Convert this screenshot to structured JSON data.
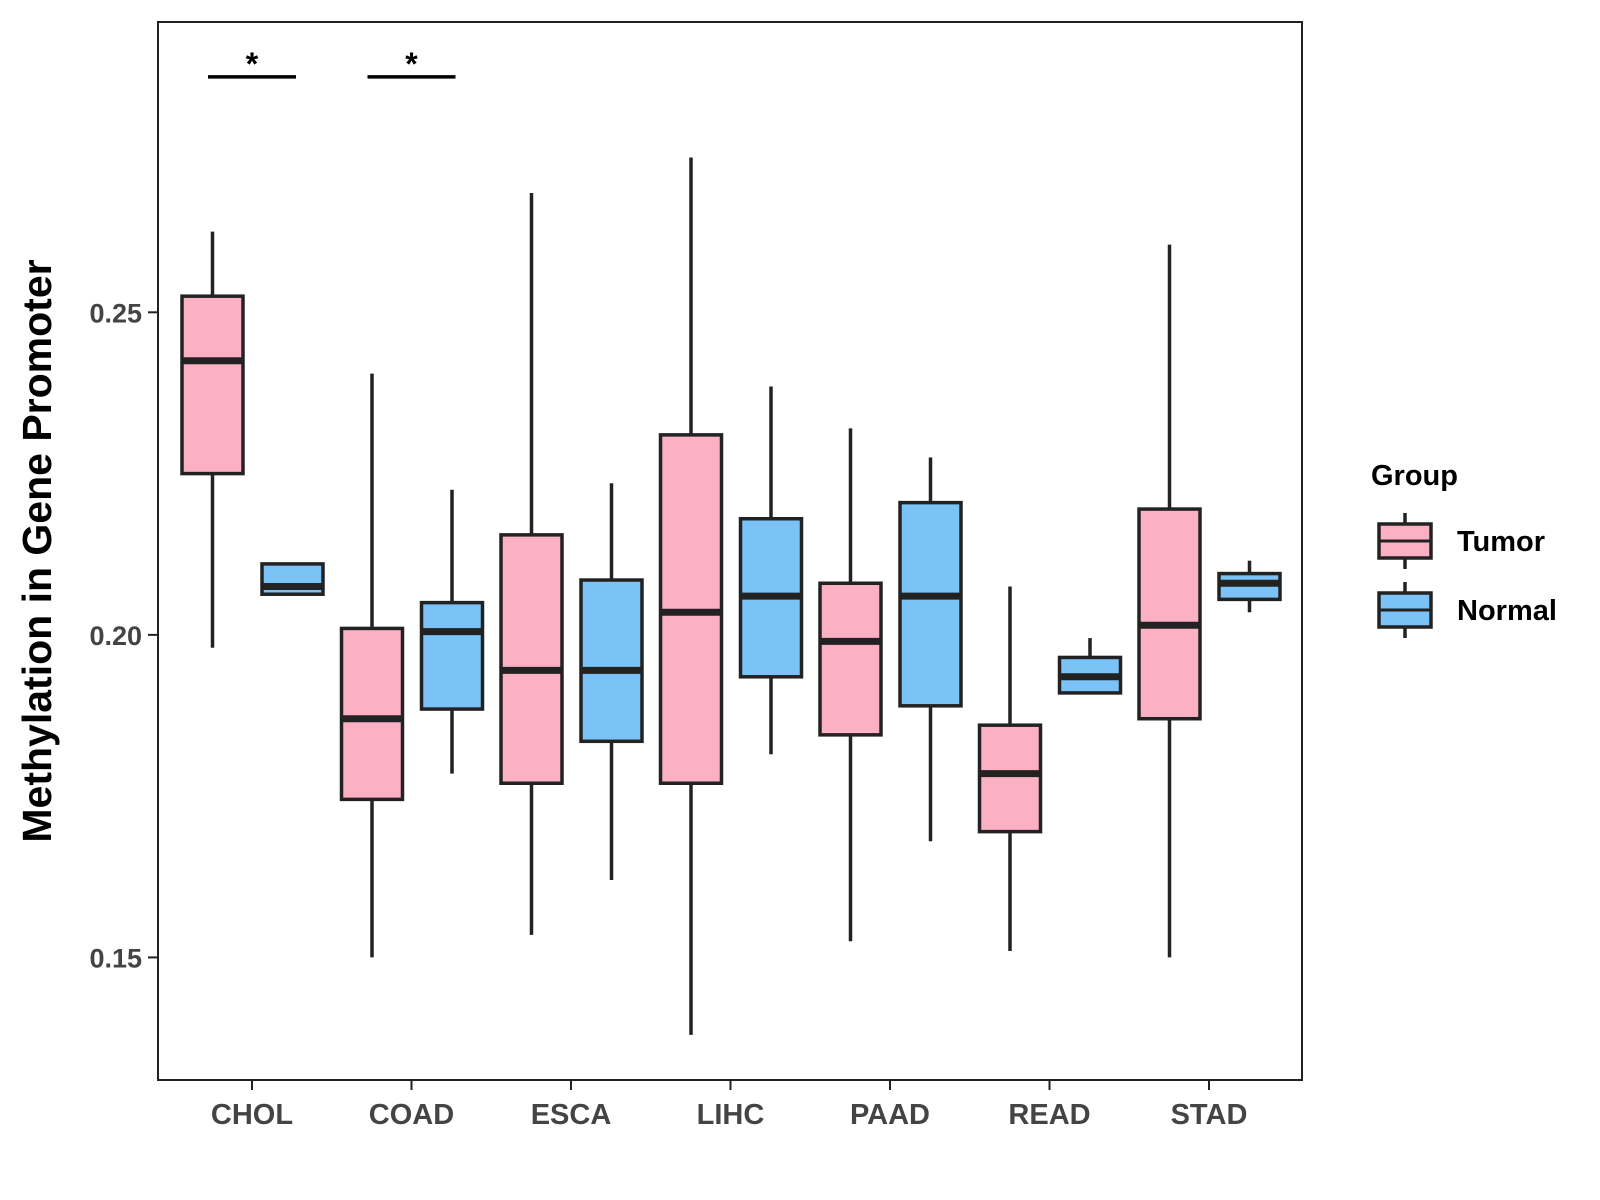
{
  "chart_data": {
    "type": "boxplot",
    "title": "",
    "xlabel": "",
    "ylabel": "Methylation in Gene Promoter",
    "ylim": [
      0.131,
      0.295
    ],
    "yticks": [
      0.15,
      0.2,
      0.25
    ],
    "ytick_labels": [
      "0.15",
      "0.20",
      "0.25"
    ],
    "categories": [
      "CHOL",
      "COAD",
      "ESCA",
      "LIHC",
      "PAAD",
      "READ",
      "STAD"
    ],
    "grid": false,
    "series": [
      {
        "name": "Tumor",
        "color": "#fbb0c3",
        "boxes": [
          {
            "min": 0.198,
            "q1": 0.225,
            "median": 0.2425,
            "q3": 0.2525,
            "max": 0.2625
          },
          {
            "min": 0.15,
            "q1": 0.1745,
            "median": 0.187,
            "q3": 0.201,
            "max": 0.2405
          },
          {
            "min": 0.1535,
            "q1": 0.177,
            "median": 0.1945,
            "q3": 0.2155,
            "max": 0.2685
          },
          {
            "min": 0.138,
            "q1": 0.177,
            "median": 0.2035,
            "q3": 0.231,
            "max": 0.274
          },
          {
            "min": 0.1525,
            "q1": 0.1845,
            "median": 0.199,
            "q3": 0.208,
            "max": 0.232
          },
          {
            "min": 0.151,
            "q1": 0.1695,
            "median": 0.1785,
            "q3": 0.186,
            "max": 0.2075
          },
          {
            "min": 0.15,
            "q1": 0.187,
            "median": 0.2015,
            "q3": 0.2195,
            "max": 0.2605
          }
        ]
      },
      {
        "name": "Normal",
        "color": "#7bc3f7",
        "boxes": [
          {
            "min": 0.2063,
            "q1": 0.2063,
            "median": 0.2075,
            "q3": 0.211,
            "max": 0.211
          },
          {
            "min": 0.1785,
            "q1": 0.1885,
            "median": 0.2005,
            "q3": 0.205,
            "max": 0.2225
          },
          {
            "min": 0.162,
            "q1": 0.1835,
            "median": 0.1945,
            "q3": 0.2085,
            "max": 0.2235
          },
          {
            "min": 0.1815,
            "q1": 0.1935,
            "median": 0.206,
            "q3": 0.218,
            "max": 0.2385
          },
          {
            "min": 0.168,
            "q1": 0.189,
            "median": 0.206,
            "q3": 0.2205,
            "max": 0.2275
          },
          {
            "min": 0.191,
            "q1": 0.191,
            "median": 0.1935,
            "q3": 0.1965,
            "max": 0.1995
          },
          {
            "min": 0.2035,
            "q1": 0.2055,
            "median": 0.208,
            "q3": 0.2095,
            "max": 0.2115
          }
        ]
      }
    ],
    "annotations": [
      {
        "category": "CHOL",
        "label": "*",
        "y": 0.2865
      },
      {
        "category": "COAD",
        "label": "*",
        "y": 0.2865
      }
    ],
    "legend": {
      "title": "Group",
      "position": "right",
      "entries": [
        "Tumor",
        "Normal"
      ]
    },
    "line_color": "#222222"
  }
}
